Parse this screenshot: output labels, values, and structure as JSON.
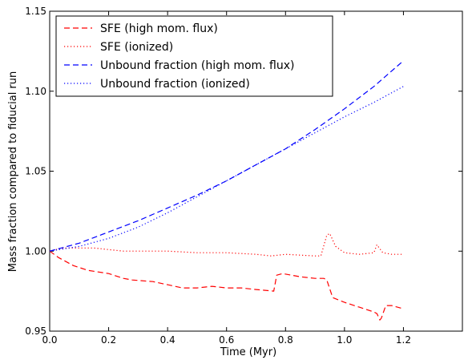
{
  "chart_data": {
    "type": "line",
    "title": "",
    "xlabel": "Time (Myr)",
    "ylabel": "Mass fraction compared to fiducial run",
    "xlim": [
      0.0,
      1.4
    ],
    "ylim": [
      0.95,
      1.15
    ],
    "xticks": [
      "0.0",
      "0.2",
      "0.4",
      "0.6",
      "0.8",
      "1.0",
      "1.2"
    ],
    "yticks": [
      "0.95",
      "1.00",
      "1.05",
      "1.10",
      "1.15"
    ],
    "grid": false,
    "legend_position": "top-left",
    "series": [
      {
        "name": "SFE (high mom. flux)",
        "color": "#ff0000",
        "style": "dashed",
        "x": [
          0.0,
          0.03,
          0.08,
          0.13,
          0.2,
          0.25,
          0.28,
          0.35,
          0.4,
          0.45,
          0.5,
          0.55,
          0.6,
          0.65,
          0.7,
          0.76,
          0.77,
          0.79,
          0.82,
          0.85,
          0.9,
          0.93,
          0.94,
          0.96,
          1.0,
          1.05,
          1.1,
          1.11,
          1.12,
          1.125,
          1.14,
          1.16,
          1.2
        ],
        "y": [
          1.0,
          0.996,
          0.991,
          0.988,
          0.986,
          0.983,
          0.982,
          0.981,
          0.979,
          0.977,
          0.977,
          0.978,
          0.977,
          0.977,
          0.976,
          0.975,
          0.985,
          0.986,
          0.985,
          0.984,
          0.983,
          0.983,
          0.982,
          0.971,
          0.968,
          0.965,
          0.962,
          0.961,
          0.957,
          0.958,
          0.966,
          0.966,
          0.964
        ]
      },
      {
        "name": "SFE (ionized)",
        "color": "#ff0000",
        "style": "dotted",
        "x": [
          0.0,
          0.02,
          0.05,
          0.1,
          0.15,
          0.2,
          0.25,
          0.3,
          0.4,
          0.5,
          0.6,
          0.7,
          0.75,
          0.8,
          0.9,
          0.92,
          0.94,
          0.95,
          0.97,
          1.0,
          1.05,
          1.1,
          1.11,
          1.13,
          1.16,
          1.2
        ],
        "y": [
          1.0,
          1.001,
          1.002,
          1.002,
          1.002,
          1.001,
          1.0,
          1.0,
          1.0,
          0.999,
          0.999,
          0.998,
          0.997,
          0.998,
          0.997,
          0.997,
          1.01,
          1.011,
          1.003,
          0.999,
          0.998,
          0.999,
          1.004,
          0.999,
          0.998,
          0.998
        ]
      },
      {
        "name": "Unbound fraction (high mom. flux)",
        "color": "#0000ff",
        "style": "dashed",
        "x": [
          0.0,
          0.1,
          0.2,
          0.3,
          0.4,
          0.5,
          0.6,
          0.7,
          0.8,
          0.9,
          1.0,
          1.1,
          1.2
        ],
        "y": [
          1.0,
          1.005,
          1.012,
          1.019,
          1.027,
          1.035,
          1.044,
          1.054,
          1.064,
          1.076,
          1.089,
          1.103,
          1.119
        ]
      },
      {
        "name": "Unbound fraction (ionized)",
        "color": "#0000ff",
        "style": "dotted",
        "x": [
          0.0,
          0.1,
          0.2,
          0.3,
          0.4,
          0.5,
          0.6,
          0.7,
          0.8,
          0.9,
          1.0,
          1.1,
          1.2
        ],
        "y": [
          1.0,
          1.003,
          1.008,
          1.015,
          1.024,
          1.034,
          1.044,
          1.054,
          1.064,
          1.074,
          1.084,
          1.093,
          1.103
        ]
      }
    ]
  }
}
